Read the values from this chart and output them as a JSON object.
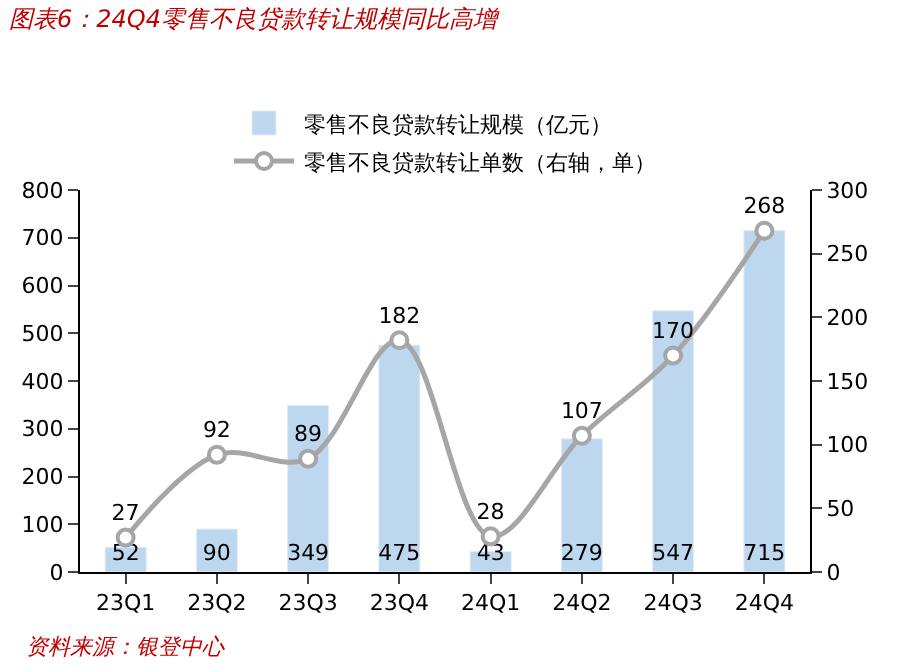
{
  "chart_data": {
    "type": "bar",
    "title": "图表6：24Q4零售不良贷款转让规模同比高增",
    "categories": [
      "23Q1",
      "23Q2",
      "23Q3",
      "23Q4",
      "24Q1",
      "24Q2",
      "24Q3",
      "24Q4"
    ],
    "series": [
      {
        "name": "零售不良贷款转让规模（亿元）",
        "color": "#bdd7ee",
        "values": [
          52,
          90,
          349,
          475,
          43,
          279,
          547,
          715
        ]
      },
      {
        "name": "零售不良贷款转让单数（右轴，单）",
        "type": "line",
        "axis": "y2",
        "color": "#a6a6a6",
        "marker": "circle",
        "line_style": "solid",
        "values": [
          27,
          92,
          89,
          182,
          28,
          107,
          170,
          268
        ]
      }
    ],
    "ylim": [
      0,
      800
    ],
    "yticks": [
      0,
      100,
      200,
      300,
      400,
      500,
      600,
      700,
      800
    ],
    "y2lim": [
      0,
      300
    ],
    "y2ticks": [
      0,
      50,
      100,
      150,
      200,
      250,
      300
    ],
    "data_labels": true,
    "legend": "top",
    "annotations": [
      "资料来源：银登中心"
    ]
  }
}
